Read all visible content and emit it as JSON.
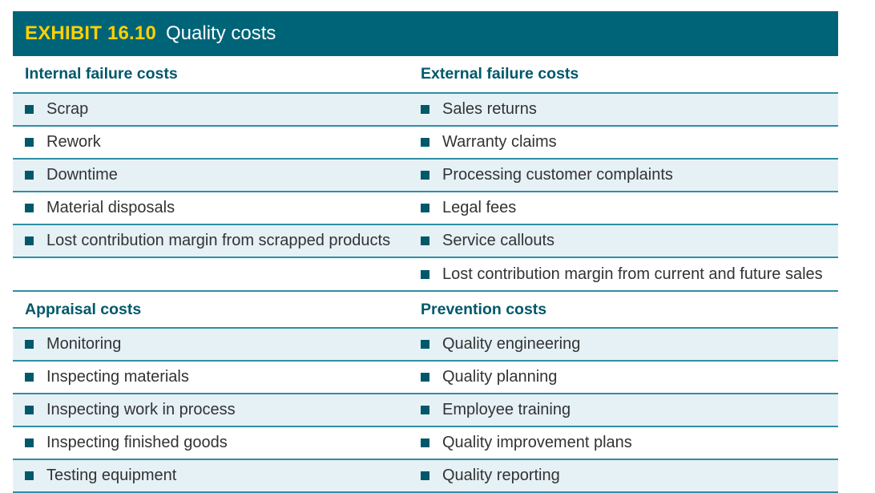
{
  "exhibit": {
    "label": "EXHIBIT 16.10",
    "title": "Quality costs"
  },
  "sections": [
    {
      "left_heading": "Internal failure costs",
      "right_heading": "External failure costs",
      "rows": [
        {
          "left": "Scrap",
          "right": "Sales returns"
        },
        {
          "left": "Rework",
          "right": "Warranty claims"
        },
        {
          "left": "Downtime",
          "right": "Processing customer complaints"
        },
        {
          "left": "Material disposals",
          "right": "Legal fees"
        },
        {
          "left": "Lost contribution margin from scrapped products",
          "right": "Service callouts"
        },
        {
          "left": "",
          "right": "Lost contribution margin from current and future sales"
        }
      ]
    },
    {
      "left_heading": "Appraisal costs",
      "right_heading": "Prevention costs",
      "rows": [
        {
          "left": "Monitoring",
          "right": "Quality engineering"
        },
        {
          "left": "Inspecting materials",
          "right": "Quality planning"
        },
        {
          "left": "Inspecting work in process",
          "right": "Employee training"
        },
        {
          "left": "Inspecting finished goods",
          "right": "Quality improvement plans"
        },
        {
          "left": "Testing equipment",
          "right": "Quality reporting"
        }
      ]
    }
  ],
  "colors": {
    "header_bg": "#006478",
    "label": "#ffd100",
    "heading": "#00586b",
    "row_shade": "#e6f1f6",
    "rule": "#2e8fa3"
  }
}
